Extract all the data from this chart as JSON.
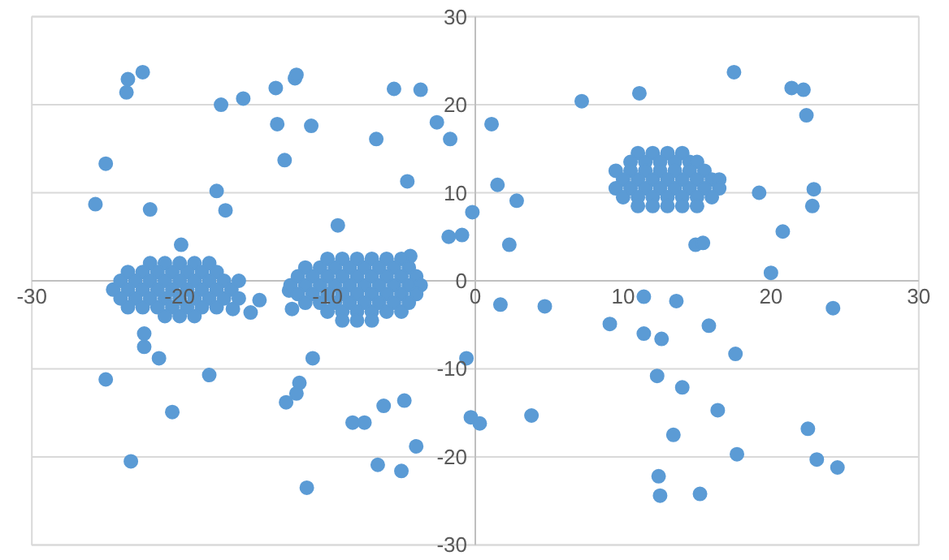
{
  "chart_data": {
    "type": "scatter",
    "xlim": [
      -30,
      30
    ],
    "ylim": [
      -30,
      30
    ],
    "xticks": [
      -30,
      -20,
      -10,
      0,
      10,
      20,
      30
    ],
    "yticks": [
      -30,
      -20,
      -10,
      0,
      10,
      20,
      30
    ],
    "grid": "y",
    "marker": "circle",
    "series": [
      {
        "color": "#5b9bd5",
        "x": [
          -25.0,
          -23.5,
          -23.6,
          -22.5,
          -25.7,
          -22.0,
          -17.2,
          -15.7,
          -17.5,
          -16.9,
          -13.4,
          -12.9,
          -13.5,
          -12.2,
          -12.1,
          -11.1,
          -9.3,
          -6.7,
          -5.5,
          -2.6,
          -3.7,
          -1.7,
          -4.6,
          -1.8,
          -0.9,
          -0.2,
          -19.9,
          -4.4,
          1.1,
          1.5,
          2.8,
          2.3,
          7.2,
          11.1,
          17.5,
          21.4,
          22.2,
          22.4,
          19.2,
          22.9,
          22.8,
          20.8,
          20.0,
          14.9,
          15.4,
          -14.6,
          -15.2,
          -16.4,
          -12.6,
          -12.4,
          -22.4,
          -22.4,
          -21.4,
          -25.0,
          -18.0,
          -20.5,
          -23.3,
          -11.0,
          -11.9,
          -12.1,
          -12.8,
          -11.4,
          -8.3,
          -7.5,
          -6.2,
          -4.8,
          -4.0,
          -6.6,
          -5.0,
          -0.6,
          -0.3,
          0.3,
          3.8,
          1.7,
          4.7,
          9.1,
          11.4,
          13.6,
          11.4,
          12.6,
          15.8,
          17.6,
          12.3,
          14.0,
          16.4,
          13.4,
          17.7,
          24.2,
          22.5,
          23.1,
          24.5,
          12.4,
          12.5,
          15.2,
          -22,
          -21,
          -20,
          -19,
          -18,
          -23.5,
          -22.5,
          -21.5,
          -20.5,
          -19.5,
          -18.5,
          -17.5,
          -24,
          -23,
          -22,
          -21,
          -20,
          -19,
          -18,
          -17,
          -16,
          -24.5,
          -23.5,
          -22.5,
          -21.5,
          -20.5,
          -19.5,
          -18.5,
          -17.5,
          -16.5,
          -24,
          -23,
          -22,
          -21,
          -20,
          -19,
          -18,
          -17,
          -16,
          -23.5,
          -22.5,
          -21.5,
          -20.5,
          -19.5,
          -18.5,
          -17.5,
          -21,
          -20,
          -19,
          -10,
          -9,
          -8,
          -7,
          -6,
          -5,
          -11.5,
          -10.5,
          -9.5,
          -8.5,
          -7.5,
          -6.5,
          -5.5,
          -4.5,
          -12,
          -11,
          -10,
          -9,
          -8,
          -7,
          -6,
          -5,
          -4,
          -12.5,
          -11.5,
          -10.5,
          -9.5,
          -8.5,
          -7.5,
          -6.5,
          -5.5,
          -4.5,
          -3.7,
          -12,
          -11,
          -10,
          -9,
          -8,
          -7,
          -6,
          -5,
          -4,
          -11.5,
          -10.5,
          -9.5,
          -8.5,
          -7.5,
          -6.5,
          -5.5,
          -4.5,
          -10,
          -9,
          -8,
          -7,
          -6,
          -5,
          -9,
          -8,
          -7,
          11,
          12,
          13,
          14,
          10.5,
          11.5,
          12.5,
          13.5,
          14.5,
          15,
          9.5,
          10.5,
          11.5,
          12.5,
          13.5,
          14.5,
          15.5,
          10,
          11,
          12,
          13,
          14,
          15,
          16,
          16.5,
          9.5,
          10.5,
          11.5,
          12.5,
          13.5,
          14.5,
          15.5,
          16.5,
          10,
          11,
          12,
          13,
          14,
          15,
          16,
          11,
          12,
          13,
          14,
          15
        ],
        "values": [
          13.3,
          22.9,
          21.4,
          23.7,
          8.7,
          8.1,
          20.0,
          20.7,
          10.2,
          8.0,
          17.8,
          13.7,
          21.9,
          23.0,
          23.4,
          17.6,
          6.3,
          16.1,
          21.8,
          18.0,
          21.7,
          16.1,
          11.3,
          5.0,
          5.2,
          7.8,
          4.1,
          2.8,
          17.8,
          10.9,
          9.1,
          4.1,
          20.4,
          21.3,
          23.7,
          21.9,
          21.7,
          18.8,
          10.0,
          10.4,
          8.5,
          5.6,
          0.9,
          4.1,
          4.3,
          -2.2,
          -3.6,
          -3.2,
          -1.1,
          -3.2,
          -6.0,
          -7.5,
          -8.8,
          -11.2,
          -10.7,
          -14.9,
          -20.5,
          -8.8,
          -11.6,
          -12.8,
          -13.8,
          -23.5,
          -16.1,
          -16.1,
          -14.2,
          -13.6,
          -18.8,
          -20.9,
          -21.6,
          -8.8,
          -15.5,
          -16.2,
          -15.3,
          -2.7,
          -2.9,
          -4.9,
          -1.8,
          -2.3,
          -6.0,
          -6.6,
          -5.1,
          -8.3,
          -10.8,
          -12.1,
          -14.7,
          -17.5,
          -19.7,
          -3.1,
          -16.8,
          -20.3,
          -21.2,
          -22.2,
          -24.4,
          -24.2,
          2,
          2,
          2,
          2,
          2,
          1,
          1,
          1,
          1,
          1,
          1,
          1,
          0,
          0,
          0,
          0,
          0,
          0,
          0,
          0,
          0,
          -1,
          -1,
          -1,
          -1,
          -1,
          -1,
          -1,
          -1,
          -1,
          -2,
          -2,
          -2,
          -2,
          -2,
          -2,
          -2,
          -2,
          -2,
          -3,
          -3,
          -3,
          -3,
          -3,
          -3,
          -3,
          -4,
          -4,
          -4,
          2.5,
          2.5,
          2.5,
          2.5,
          2.5,
          2.5,
          1.5,
          1.5,
          1.5,
          1.5,
          1.5,
          1.5,
          1.5,
          1.5,
          0.5,
          0.5,
          0.5,
          0.5,
          0.5,
          0.5,
          0.5,
          0.5,
          0.5,
          -0.5,
          -0.5,
          -0.5,
          -0.5,
          -0.5,
          -0.5,
          -0.5,
          -0.5,
          -0.5,
          -0.5,
          -1.5,
          -1.5,
          -1.5,
          -1.5,
          -1.5,
          -1.5,
          -1.5,
          -1.5,
          -1.5,
          -2.5,
          -2.5,
          -2.5,
          -2.5,
          -2.5,
          -2.5,
          -2.5,
          -2.5,
          -3.5,
          -3.5,
          -3.5,
          -3.5,
          -3.5,
          -3.5,
          -4.5,
          -4.5,
          -4.5,
          14.5,
          14.5,
          14.5,
          14.5,
          13.5,
          13.5,
          13.5,
          13.5,
          13.5,
          13.5,
          12.5,
          12.5,
          12.5,
          12.5,
          12.5,
          12.5,
          12.5,
          11.5,
          11.5,
          11.5,
          11.5,
          11.5,
          11.5,
          11.5,
          11.5,
          10.5,
          10.5,
          10.5,
          10.5,
          10.5,
          10.5,
          10.5,
          10.5,
          9.5,
          9.5,
          9.5,
          9.5,
          9.5,
          9.5,
          9.5,
          8.5,
          8.5,
          8.5,
          8.5,
          8.5
        ]
      }
    ]
  }
}
